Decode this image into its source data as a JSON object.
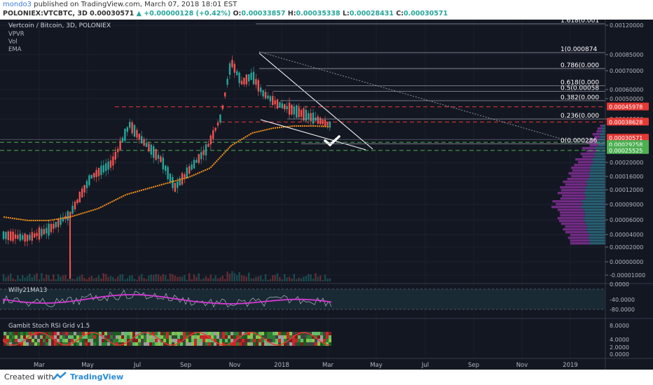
{
  "header": {
    "author": "mondo3",
    "published_text": "published on TradingView.com, March 07, 2018 18:01 EST",
    "symbol": "POLONIEX:VTCBTC, 3D",
    "last": "0.00030571",
    "change": "+0.00000128 (+0.42%)",
    "open_label": "O:",
    "open": "0.00033857",
    "high_label": "H:",
    "high": "0.00035338",
    "low_label": "L:",
    "low": "0.00028431",
    "close_label": "C:",
    "close": "0.00030571"
  },
  "legend": {
    "title": "Vertcoin / Bitcoin, 3D, POLONIEX",
    "items": [
      "VPVR",
      "Vol",
      "EMA"
    ]
  },
  "footer": {
    "created": "Created with",
    "brand": "TradingView"
  },
  "colors": {
    "background": "#131722",
    "up": "#26a69a",
    "down": "#ef5350",
    "ema": "#f7931a",
    "willy": "#d63ad6",
    "red_level": "#e53935",
    "green_level": "#4caf50",
    "text": "#b2b5be"
  },
  "chart_data": [
    {
      "type": "candlestick",
      "panel": "main",
      "y_axis_ticks": [
        "0.00120000",
        "0.00085000",
        "0.00070000",
        "0.00060000",
        "0.00050000",
        "0.00040000",
        "0.00020000",
        "0.00016000",
        "0.00012000",
        "0.00009000",
        "0.00006000",
        "0.00004000",
        "0.00002000",
        "0.00000000",
        "-0.00001000"
      ],
      "x_axis_ticks": [
        "Mar",
        "May",
        "Jul",
        "Sep",
        "Nov",
        "2018",
        "Mar",
        "May",
        "Jul",
        "Sep",
        "Nov",
        "2019"
      ],
      "fib_levels": [
        {
          "label": "1.618(0.001",
          "value": 0.001
        },
        {
          "label": "1(0.000874",
          "value": 0.000874
        },
        {
          "label": "0.786(0.000",
          "value": 0.00072
        },
        {
          "label": "0.618(0.000",
          "value": 0.00062
        },
        {
          "label": "0.5(0.00058",
          "value": 0.00058
        },
        {
          "label": "0.382(0.000",
          "value": 0.00049
        },
        {
          "label": "0.236(0.000",
          "value": 0.0004
        },
        {
          "label": "0(0.000286",
          "value": 0.000286
        }
      ],
      "price_labels": [
        {
          "label": "0.00045978",
          "value": 0.00045978,
          "color": "#e53935"
        },
        {
          "label": "0.00038628",
          "value": 0.00038628,
          "color": "#e53935"
        },
        {
          "label": "0.00030571",
          "value": 0.00030571,
          "color": "#e53935"
        },
        {
          "label": "0.00029258",
          "value": 0.00029258,
          "color": "#4caf50"
        },
        {
          "label": "0.00025525",
          "value": 0.00025525,
          "color": "#4caf50"
        }
      ]
    },
    {
      "type": "line",
      "panel": "Willy21MA13",
      "title": "Willy21MA13",
      "y_axis_ticks": [
        "0.0000",
        "-40.0000",
        "-80.0000"
      ]
    },
    {
      "type": "heatmap",
      "panel": "Gambit Stoch RSI Grid v1.5",
      "title": "Gambit Stoch RSI Grid v1.5",
      "y_axis_ticks": [
        "8.0000",
        "4.0000",
        "2.0000",
        "0.0000"
      ]
    }
  ]
}
